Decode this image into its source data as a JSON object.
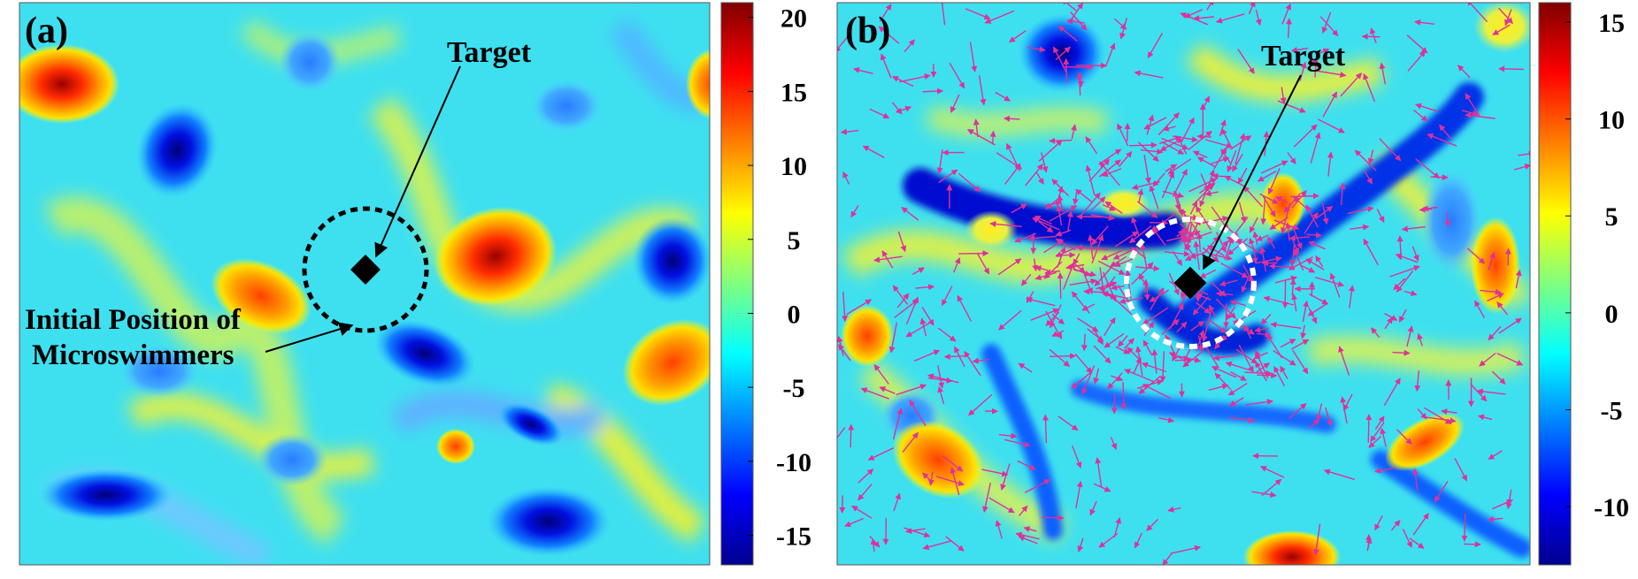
{
  "panel_a": {
    "label": "(a)",
    "target_label": "Target",
    "initial_label_line1": "Initial Position of",
    "initial_label_line2": "Microswimmers",
    "colorbar_ticks": [
      20,
      15,
      10,
      5,
      0,
      -5,
      -10,
      -15
    ],
    "colorbar_min": -17,
    "colorbar_max": 21
  },
  "panel_b": {
    "label": "(b)",
    "target_label": "Target",
    "colorbar_ticks": [
      15,
      10,
      5,
      0,
      -5,
      -10
    ],
    "colorbar_min": -13,
    "colorbar_max": 16
  },
  "colors": {
    "arrow": "#e0309a",
    "marker": "#000000",
    "ring_a": "#000000",
    "ring_b": "#ffffff"
  }
}
